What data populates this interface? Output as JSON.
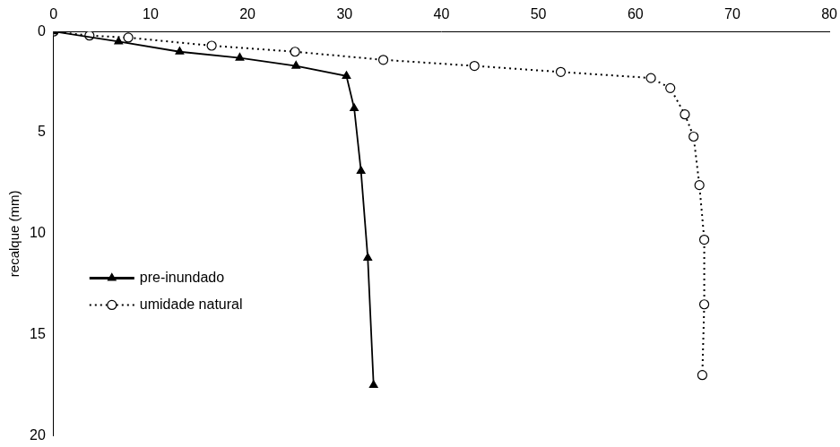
{
  "chart_data": {
    "type": "scatter",
    "y_label": "recalque (mm)",
    "xlim": [
      0,
      80
    ],
    "xticks": [
      0,
      10,
      20,
      30,
      40,
      50,
      60,
      70,
      80
    ],
    "ylim": [
      0,
      20
    ],
    "yticks": [
      0,
      5,
      10,
      15,
      20
    ],
    "grid": false,
    "legend": "left",
    "series": [
      {
        "name": "pre-inundado",
        "color": "#000000",
        "marker": "triangle",
        "line_style": "solid",
        "x": [
          0,
          6.7,
          13,
          19.2,
          25,
          30.2,
          31,
          31.7,
          32.4,
          33
        ],
        "values": [
          0,
          0.5,
          1.0,
          1.3,
          1.7,
          2.2,
          3.8,
          6.9,
          11.2,
          17.5
        ]
      },
      {
        "name": "umidade natural",
        "color": "#000000",
        "marker": "open_circle",
        "line_style": "dotted",
        "x": [
          0,
          3.7,
          7.7,
          16.3,
          24.9,
          34,
          43.4,
          52.3,
          61.6,
          63.6,
          65.1,
          66,
          66.6,
          67.1,
          67.1,
          66.9
        ],
        "values": [
          0,
          0.2,
          0.3,
          0.7,
          1.0,
          1.4,
          1.7,
          2.0,
          2.3,
          2.8,
          4.1,
          5.2,
          7.6,
          10.3,
          13.5,
          17.0
        ]
      }
    ]
  }
}
